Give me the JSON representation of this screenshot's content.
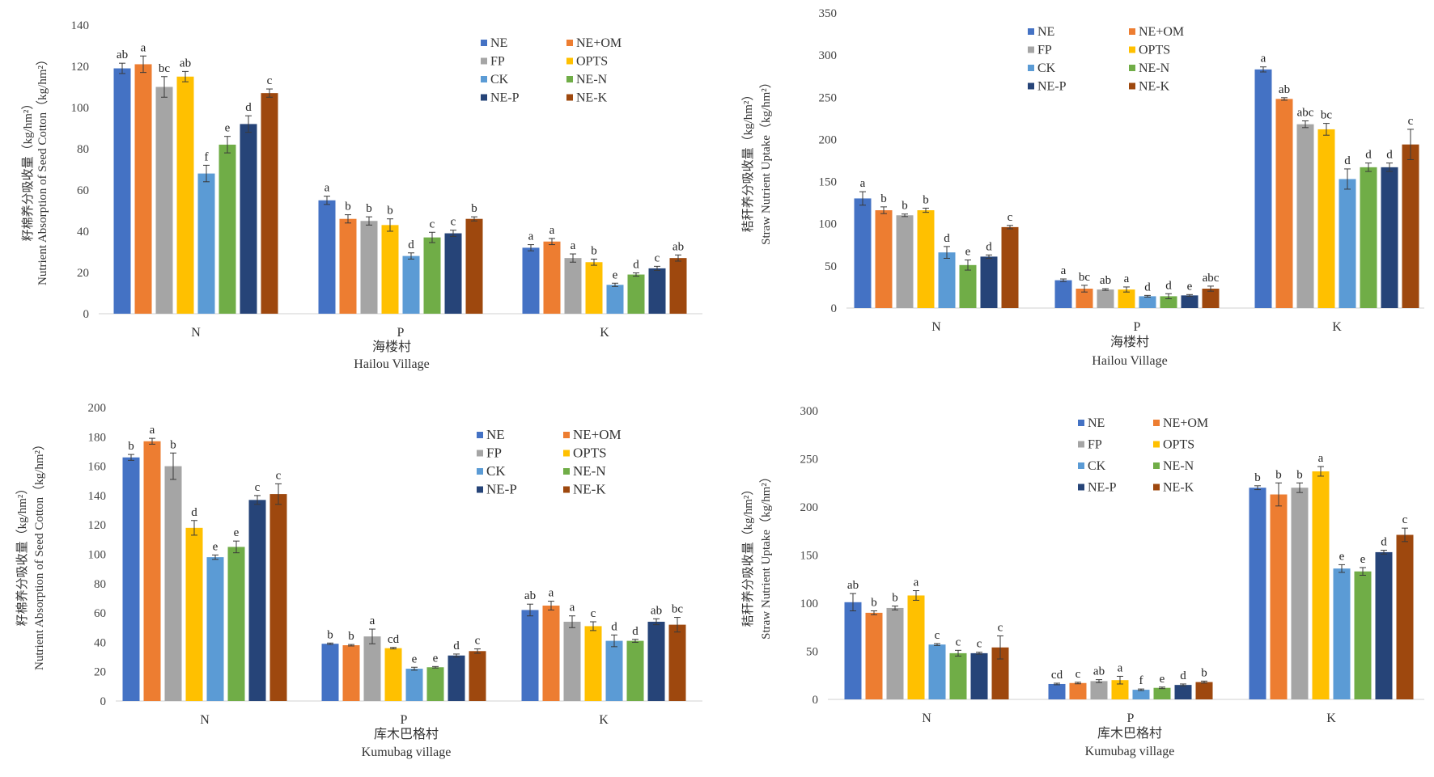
{
  "chart_data": [
    {
      "type": "bar",
      "categories": [
        "N",
        "P",
        "K"
      ],
      "ylabel_cn": "籽棉养分吸收量（kg/hm²）",
      "ylabel_en": "Nutrient Absorption of Seed Cotton（kg/hm²）",
      "xlabel_cn": "海楼村",
      "xlabel_en": "Hailou Village",
      "ylim": [
        0,
        140
      ],
      "yticks": [
        0,
        20,
        40,
        60,
        80,
        100,
        120,
        140
      ],
      "series": [
        {
          "name": "NE",
          "color": "#4472C4",
          "values": [
            119,
            55,
            32
          ],
          "errors": [
            2.5,
            2,
            1.5
          ],
          "letters": [
            "ab",
            "a",
            "a"
          ]
        },
        {
          "name": "NE+OM",
          "color": "#ED7D31",
          "values": [
            121,
            46,
            35
          ],
          "errors": [
            4,
            2,
            1.5
          ],
          "letters": [
            "a",
            "b",
            "a"
          ]
        },
        {
          "name": "FP",
          "color": "#A5A5A5",
          "values": [
            110,
            45,
            27
          ],
          "errors": [
            5,
            2,
            2
          ],
          "letters": [
            "bc",
            "b",
            "a"
          ]
        },
        {
          "name": "OPTS",
          "color": "#FFC000",
          "values": [
            115,
            43,
            25
          ],
          "errors": [
            2.5,
            3,
            1.5
          ],
          "letters": [
            "ab",
            "b",
            "b"
          ]
        },
        {
          "name": "CK",
          "color": "#5B9BD5",
          "values": [
            68,
            28,
            14
          ],
          "errors": [
            4,
            1.5,
            0.8
          ],
          "letters": [
            "f",
            "d",
            "e"
          ]
        },
        {
          "name": "NE-N",
          "color": "#70AD47",
          "values": [
            82,
            37,
            19
          ],
          "errors": [
            4,
            2.5,
            0.8
          ],
          "letters": [
            "e",
            "c",
            "d"
          ]
        },
        {
          "name": "NE-P",
          "color": "#264478",
          "values": [
            92,
            39,
            22
          ],
          "errors": [
            4,
            1.5,
            1
          ],
          "letters": [
            "d",
            "c",
            "c"
          ]
        },
        {
          "name": "NE-K",
          "color": "#9E480E",
          "values": [
            107,
            46,
            27
          ],
          "errors": [
            2,
            1,
            1.5
          ],
          "letters": [
            "c",
            "b",
            "ab"
          ]
        }
      ]
    },
    {
      "type": "bar",
      "categories": [
        "N",
        "P",
        "K"
      ],
      "ylabel_cn": "秸秆养分吸收量（kg/hm²）",
      "ylabel_en": "Straw Nutrient Uptake（kg/hm²）",
      "xlabel_cn": "海楼村",
      "xlabel_en": "Hailou Village",
      "ylim": [
        0,
        350
      ],
      "yticks": [
        0,
        50,
        100,
        150,
        200,
        250,
        300,
        350
      ],
      "series": [
        {
          "name": "NE",
          "color": "#4472C4",
          "values": [
            130,
            33,
            283
          ],
          "errors": [
            8,
            1.5,
            3
          ],
          "letters": [
            "a",
            "a",
            "a"
          ]
        },
        {
          "name": "NE+OM",
          "color": "#ED7D31",
          "values": [
            116,
            23,
            248
          ],
          "errors": [
            4,
            4,
            1.5
          ],
          "letters": [
            "b",
            "bc",
            "ab"
          ]
        },
        {
          "name": "FP",
          "color": "#A5A5A5",
          "values": [
            110,
            22,
            218
          ],
          "errors": [
            1.5,
            1,
            4
          ],
          "letters": [
            "b",
            "ab",
            "abc"
          ]
        },
        {
          "name": "OPTS",
          "color": "#FFC000",
          "values": [
            116,
            22,
            212
          ],
          "errors": [
            2.5,
            3,
            7
          ],
          "letters": [
            "b",
            "a",
            "bc"
          ]
        },
        {
          "name": "CK",
          "color": "#5B9BD5",
          "values": [
            66,
            14,
            153
          ],
          "errors": [
            7,
            1,
            12
          ],
          "letters": [
            "d",
            "d",
            "d"
          ]
        },
        {
          "name": "NE-N",
          "color": "#70AD47",
          "values": [
            51,
            14,
            167
          ],
          "errors": [
            6,
            3,
            5
          ],
          "letters": [
            "e",
            "d",
            "d"
          ]
        },
        {
          "name": "NE-P",
          "color": "#264478",
          "values": [
            61,
            15,
            167
          ],
          "errors": [
            2,
            1,
            5
          ],
          "letters": [
            "d",
            "e",
            "d"
          ]
        },
        {
          "name": "NE-K",
          "color": "#9E480E",
          "values": [
            96,
            23,
            194
          ],
          "errors": [
            2,
            3,
            18
          ],
          "letters": [
            "c",
            "abc",
            "c"
          ]
        }
      ]
    },
    {
      "type": "bar",
      "categories": [
        "N",
        "P",
        "K"
      ],
      "ylabel_cn": "籽棉养分吸收量（kg/hm²）",
      "ylabel_en": "Nutrient Absorption of Seed Cotton（kg/hm²）",
      "xlabel_cn": "库木巴格村",
      "xlabel_en": "Kumubag village",
      "ylim": [
        0,
        200
      ],
      "yticks": [
        0,
        20,
        40,
        60,
        80,
        100,
        120,
        140,
        160,
        180,
        200
      ],
      "series": [
        {
          "name": "NE",
          "color": "#4472C4",
          "values": [
            166,
            39,
            62
          ],
          "errors": [
            2,
            0.5,
            4
          ],
          "letters": [
            "b",
            "b",
            "ab"
          ]
        },
        {
          "name": "NE+OM",
          "color": "#ED7D31",
          "values": [
            177,
            38,
            65
          ],
          "errors": [
            2,
            0.5,
            3
          ],
          "letters": [
            "a",
            "b",
            "a"
          ]
        },
        {
          "name": "FP",
          "color": "#A5A5A5",
          "values": [
            160,
            44,
            54
          ],
          "errors": [
            9,
            5,
            4
          ],
          "letters": [
            "b",
            "a",
            "a"
          ]
        },
        {
          "name": "OPTS",
          "color": "#FFC000",
          "values": [
            118,
            36,
            51
          ],
          "errors": [
            5,
            0.5,
            3
          ],
          "letters": [
            "d",
            "cd",
            "c"
          ]
        },
        {
          "name": "CK",
          "color": "#5B9BD5",
          "values": [
            98,
            22,
            41
          ],
          "errors": [
            1.5,
            1,
            4
          ],
          "letters": [
            "e",
            "e",
            "d"
          ]
        },
        {
          "name": "NE-N",
          "color": "#70AD47",
          "values": [
            105,
            23,
            41
          ],
          "errors": [
            4,
            0.5,
            1
          ],
          "letters": [
            "e",
            "e",
            "d"
          ]
        },
        {
          "name": "NE-P",
          "color": "#264478",
          "values": [
            137,
            31,
            54
          ],
          "errors": [
            3,
            1,
            2
          ],
          "letters": [
            "c",
            "d",
            "ab"
          ]
        },
        {
          "name": "NE-K",
          "color": "#9E480E",
          "values": [
            141,
            34,
            52
          ],
          "errors": [
            7,
            1.5,
            5
          ],
          "letters": [
            "c",
            "c",
            "bc"
          ]
        }
      ]
    },
    {
      "type": "bar",
      "categories": [
        "N",
        "P",
        "K"
      ],
      "ylabel_cn": "秸秆养分吸收量（kg/hm²）",
      "ylabel_en": "Straw Nutrient Uptake（kg/hm²）",
      "xlabel_cn": "库木巴格村",
      "xlabel_en": "Kumubag village",
      "ylim": [
        0,
        300
      ],
      "yticks": [
        0,
        50,
        100,
        150,
        200,
        250,
        300
      ],
      "series": [
        {
          "name": "NE",
          "color": "#4472C4",
          "values": [
            101,
            16,
            220
          ],
          "errors": [
            9,
            0.8,
            2
          ],
          "letters": [
            "ab",
            "cd",
            "b"
          ]
        },
        {
          "name": "NE+OM",
          "color": "#ED7D31",
          "values": [
            90,
            17,
            213
          ],
          "errors": [
            2,
            0.8,
            12
          ],
          "letters": [
            "b",
            "c",
            "b"
          ]
        },
        {
          "name": "FP",
          "color": "#A5A5A5",
          "values": [
            95,
            19,
            220
          ],
          "errors": [
            2,
            1.5,
            5
          ],
          "letters": [
            "b",
            "ab",
            "b"
          ]
        },
        {
          "name": "OPTS",
          "color": "#FFC000",
          "values": [
            108,
            20,
            237
          ],
          "errors": [
            5,
            4,
            5
          ],
          "letters": [
            "a",
            "a",
            "a"
          ]
        },
        {
          "name": "CK",
          "color": "#5B9BD5",
          "values": [
            57,
            10,
            136
          ],
          "errors": [
            1,
            0.8,
            4
          ],
          "letters": [
            "c",
            "f",
            "e"
          ]
        },
        {
          "name": "NE-N",
          "color": "#70AD47",
          "values": [
            48,
            12,
            133
          ],
          "errors": [
            3,
            0.8,
            4
          ],
          "letters": [
            "c",
            "e",
            "e"
          ]
        },
        {
          "name": "NE-P",
          "color": "#264478",
          "values": [
            48,
            15,
            153
          ],
          "errors": [
            1,
            1,
            2
          ],
          "letters": [
            "c",
            "d",
            "d"
          ]
        },
        {
          "name": "NE-K",
          "color": "#9E480E",
          "values": [
            54,
            18,
            171
          ],
          "errors": [
            12,
            1,
            7
          ],
          "letters": [
            "c",
            "b",
            "c"
          ]
        }
      ]
    }
  ]
}
